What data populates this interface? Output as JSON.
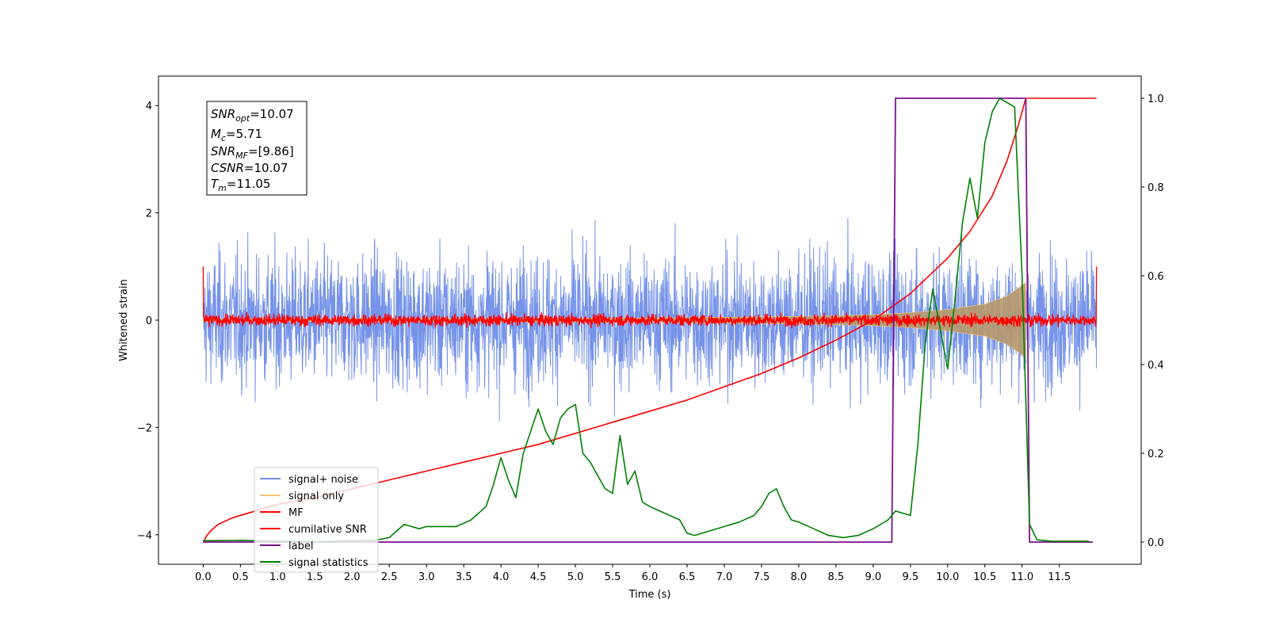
{
  "chart_data": {
    "type": "line",
    "title": "",
    "xlabel": "Time (s)",
    "ylabel": "Whitened strain",
    "xlim": [
      -0.6,
      12.6
    ],
    "ylim": [
      -4.55,
      4.55
    ],
    "y2lim": [
      -0.05,
      1.05
    ],
    "x_ticks": [
      "0.0",
      "0.5",
      "1.0",
      "1.5",
      "2.0",
      "2.5",
      "3.0",
      "3.5",
      "4.0",
      "4.5",
      "5.0",
      "5.5",
      "6.0",
      "6.5",
      "7.0",
      "7.5",
      "8.0",
      "8.5",
      "9.0",
      "9.5",
      "10.0",
      "10.5",
      "11.0",
      "11.5"
    ],
    "y_ticks": [
      "−4",
      "−2",
      "0",
      "2",
      "4"
    ],
    "y2_ticks": [
      "0.0",
      "0.2",
      "0.4",
      "0.6",
      "0.8",
      "1.0"
    ],
    "grid": false,
    "legend_position": "lower-left",
    "annotation": {
      "snr_opt": {
        "sym": "SNR",
        "sub": "opt",
        "val": "=10.07"
      },
      "mc": {
        "sym": "M",
        "sub": "c",
        "val": "=5.71"
      },
      "snr_mf": {
        "sym": "SNR",
        "sub": "MF",
        "val": "=[9.86]"
      },
      "csnr": {
        "sym": "CSNR",
        "sub": "",
        "val": "=10.07"
      },
      "tm": {
        "sym": "T",
        "sub": "m",
        "val": "=11.05"
      }
    },
    "series": [
      {
        "name": "signal+ noise",
        "axis": "left",
        "color": "#6f8de8",
        "noise_amplitude": 2.8,
        "t_start": 0.0,
        "t_end": 12.0
      },
      {
        "name": "signal only",
        "axis": "left",
        "color": "#f5c97a",
        "envelope": {
          "t": [
            0,
            6,
            8,
            9,
            9.5,
            10,
            10.5,
            10.8,
            11.0,
            11.05
          ],
          "amp": [
            0.02,
            0.04,
            0.07,
            0.1,
            0.14,
            0.2,
            0.3,
            0.45,
            0.65,
            0.7
          ]
        }
      },
      {
        "name": "MF",
        "axis": "left",
        "color": "#ff0000",
        "noise_amplitude": 0.12,
        "edge_value": 1.0,
        "t_start": 0.0,
        "t_end": 12.0
      },
      {
        "name": "cumilative SNR",
        "axis": "right",
        "color": "#ff0000",
        "x": [
          0.0,
          0.05,
          0.1,
          0.2,
          0.4,
          0.7,
          1.0,
          1.5,
          2.0,
          2.5,
          3.0,
          3.5,
          4.0,
          4.5,
          5.0,
          5.5,
          6.0,
          6.5,
          7.0,
          7.5,
          8.0,
          8.5,
          9.0,
          9.5,
          10.0,
          10.3,
          10.6,
          10.8,
          10.95,
          11.05,
          11.1,
          12.0
        ],
        "y": [
          0.0,
          0.015,
          0.025,
          0.04,
          0.055,
          0.07,
          0.085,
          0.1,
          0.12,
          0.14,
          0.16,
          0.18,
          0.2,
          0.22,
          0.245,
          0.27,
          0.295,
          0.32,
          0.35,
          0.38,
          0.415,
          0.455,
          0.5,
          0.56,
          0.64,
          0.7,
          0.78,
          0.86,
          0.94,
          1.0,
          1.0,
          1.0
        ]
      },
      {
        "name": "label",
        "axis": "right",
        "color": "#7b0f8f",
        "x": [
          0.0,
          9.25,
          9.3,
          11.05,
          11.1,
          11.95
        ],
        "y": [
          0.0,
          0.0,
          1.0,
          1.0,
          0.0,
          0.0
        ]
      },
      {
        "name": "signal statistics",
        "axis": "right",
        "color": "#008000",
        "x": [
          0.0,
          0.5,
          1.0,
          1.5,
          2.0,
          2.3,
          2.5,
          2.7,
          2.9,
          3.0,
          3.2,
          3.4,
          3.6,
          3.8,
          3.9,
          4.0,
          4.1,
          4.2,
          4.3,
          4.4,
          4.5,
          4.6,
          4.7,
          4.8,
          4.9,
          5.0,
          5.1,
          5.2,
          5.3,
          5.4,
          5.5,
          5.6,
          5.7,
          5.8,
          5.9,
          6.0,
          6.2,
          6.4,
          6.5,
          6.6,
          6.8,
          7.0,
          7.2,
          7.4,
          7.5,
          7.6,
          7.7,
          7.8,
          7.9,
          8.0,
          8.2,
          8.4,
          8.6,
          8.8,
          9.0,
          9.2,
          9.3,
          9.5,
          9.6,
          9.7,
          9.8,
          9.9,
          10.0,
          10.1,
          10.2,
          10.3,
          10.4,
          10.5,
          10.6,
          10.7,
          10.8,
          10.9,
          11.0,
          11.1,
          11.2,
          11.4,
          11.6,
          11.9
        ],
        "y": [
          0.003,
          0.004,
          0.002,
          0.001,
          0.003,
          0.004,
          0.01,
          0.04,
          0.03,
          0.035,
          0.035,
          0.035,
          0.05,
          0.08,
          0.13,
          0.19,
          0.14,
          0.1,
          0.2,
          0.25,
          0.3,
          0.25,
          0.22,
          0.28,
          0.3,
          0.31,
          0.2,
          0.18,
          0.15,
          0.12,
          0.11,
          0.24,
          0.13,
          0.16,
          0.09,
          0.08,
          0.065,
          0.05,
          0.02,
          0.015,
          0.025,
          0.035,
          0.045,
          0.06,
          0.08,
          0.11,
          0.12,
          0.08,
          0.05,
          0.045,
          0.03,
          0.015,
          0.01,
          0.015,
          0.03,
          0.05,
          0.07,
          0.06,
          0.22,
          0.45,
          0.57,
          0.48,
          0.39,
          0.55,
          0.72,
          0.82,
          0.73,
          0.9,
          0.97,
          1.0,
          0.99,
          0.98,
          0.6,
          0.04,
          0.005,
          0.002,
          0.002,
          0.002
        ]
      }
    ]
  }
}
